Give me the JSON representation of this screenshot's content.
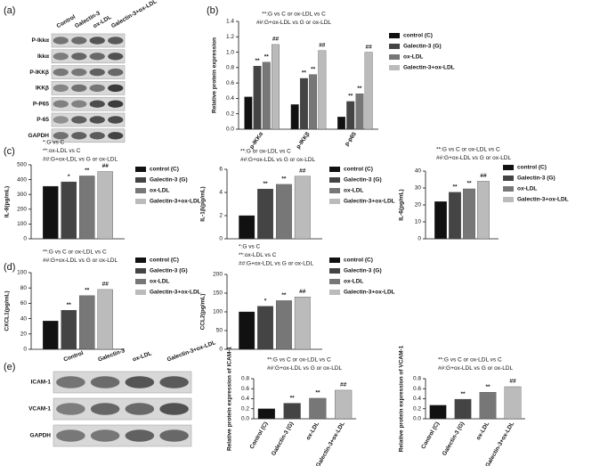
{
  "panels": {
    "a": "(a)",
    "b": "(b)",
    "c": "(c)",
    "d": "(d)",
    "e": "(e)"
  },
  "blot_a": {
    "lanes": [
      "Control",
      "Galectin-3",
      "ox-LDL",
      "Galectin-3+ox-LDL"
    ],
    "rows": [
      "P-Ikkα",
      "Ikkα",
      "P-IKKβ",
      "IKKβ",
      "P-P65",
      "P-65",
      "GAPDH"
    ]
  },
  "blot_e": {
    "lanes": [
      "Control",
      "Galectin-3",
      "ox-LDL",
      "Galectin-3+ox-LDL"
    ],
    "rows": [
      "ICAM-1",
      "VCAM-1",
      "GAPDH"
    ]
  },
  "chart_data": [
    {
      "type": "bar",
      "notes": [
        "**:G vs C or ox-LDL vs C",
        "##:G+ox-LDL vs G or ox-LDL"
      ],
      "y_label": "Relative protein expression",
      "categories": [
        "p-IKKα",
        "p-IKKβ",
        "p-p65"
      ],
      "ylim": [
        0,
        1.4
      ],
      "yticks": [
        {
          "value": 0,
          "label": "0.0"
        },
        {
          "value": 0.2,
          "label": "0.2"
        },
        {
          "value": 0.4,
          "label": "0.4"
        },
        {
          "value": 0.6,
          "label": "0.6"
        },
        {
          "value": 0.8,
          "label": "0.8"
        },
        {
          "value": 1,
          "label": "1.0"
        },
        {
          "value": 1.2,
          "label": "1.2"
        },
        {
          "value": 1.4,
          "label": "1.4"
        }
      ],
      "series": [
        {
          "name": "control  (C)",
          "color": "#111111",
          "values": [
            0.42,
            0.32,
            0.16
          ]
        },
        {
          "name": "Galectin-3  (G)",
          "color": "#444444",
          "values": [
            0.82,
            0.66,
            0.36
          ],
          "significance": [
            "**",
            "**",
            "**"
          ]
        },
        {
          "name": "ox-LDL",
          "color": "#777777",
          "values": [
            0.87,
            0.71,
            0.46
          ],
          "significance": [
            "**",
            "**",
            "**"
          ]
        },
        {
          "name": "Galectin-3+ox-LDL",
          "color": "#bbbbbb",
          "values": [
            1.1,
            1.02,
            1.0
          ],
          "significance": [
            "##",
            "##",
            "##"
          ]
        }
      ]
    },
    {
      "type": "bar",
      "notes": [
        "*:G vs C",
        "**:ox-LDL vs C",
        "##:G+ox-LDL vs G or ox-LDL"
      ],
      "y_label": "IL-8(pg/mL)",
      "categories": [
        null
      ],
      "ylim": [
        0,
        500
      ],
      "yticks": [
        0,
        100,
        200,
        300,
        400,
        500
      ],
      "series": [
        {
          "name": "control  (C)",
          "color": "#111111",
          "values": [
            355
          ]
        },
        {
          "name": "Galectin-3  (G)",
          "color": "#444444",
          "values": [
            385
          ],
          "significance": [
            "*"
          ]
        },
        {
          "name": "ox-LDL",
          "color": "#777777",
          "values": [
            425
          ],
          "significance": [
            "**"
          ]
        },
        {
          "name": "Galectin-3+ox-LDL",
          "color": "#bbbbbb",
          "values": [
            455
          ],
          "significance": [
            "##"
          ]
        }
      ]
    },
    {
      "type": "bar",
      "notes": [
        "**:G or ox-LDL vs C",
        "##:G+ox-LDL vs G or ox-LDL"
      ],
      "y_label": "IL-1β(pg/mL)",
      "categories": [
        null
      ],
      "ylim": [
        0,
        6
      ],
      "yticks": [
        0,
        2,
        4,
        6
      ],
      "series": [
        {
          "name": "control  (C)",
          "color": "#111111",
          "values": [
            2.0
          ]
        },
        {
          "name": "Galectin-3  (G)",
          "color": "#444444",
          "values": [
            4.3
          ],
          "significance": [
            "**"
          ]
        },
        {
          "name": "ox-LDL",
          "color": "#777777",
          "values": [
            4.7
          ],
          "significance": [
            "**"
          ]
        },
        {
          "name": "Galectin-3+ox-LDL",
          "color": "#bbbbbb",
          "values": [
            5.4
          ],
          "significance": [
            "##"
          ]
        }
      ]
    },
    {
      "type": "bar",
      "notes": [
        "**:G vs C or ox-LDL vs C",
        "##:G+ox-LDL vs G or ox-LDL"
      ],
      "y_label": "IL-6(pg/mL)",
      "categories": [
        null
      ],
      "ylim": [
        0,
        40
      ],
      "yticks": [
        0,
        10,
        20,
        30,
        40
      ],
      "series": [
        {
          "name": "control  (C)",
          "color": "#111111",
          "values": [
            22
          ]
        },
        {
          "name": "Galectin-3  (G)",
          "color": "#444444",
          "values": [
            27.5
          ],
          "significance": [
            "**"
          ]
        },
        {
          "name": "ox-LDL",
          "color": "#777777",
          "values": [
            29.5
          ],
          "significance": [
            "**"
          ]
        },
        {
          "name": "Galectin-3+ox-LDL",
          "color": "#bbbbbb",
          "values": [
            34
          ],
          "significance": [
            "##"
          ]
        }
      ]
    },
    {
      "type": "bar",
      "notes": [
        "**:G vs C or ox-LDL vs C",
        "##:G+ox-LDL vs G or ox-LDL"
      ],
      "y_label": "CXCL1(pg/mL)",
      "categories": [
        null
      ],
      "ylim": [
        0,
        100
      ],
      "yticks": [
        0,
        20,
        40,
        60,
        80,
        100
      ],
      "series": [
        {
          "name": "control  (C)",
          "color": "#111111",
          "values": [
            37
          ]
        },
        {
          "name": "Galectin-3  (G)",
          "color": "#444444",
          "values": [
            51
          ],
          "significance": [
            "**"
          ]
        },
        {
          "name": "ox-LDL",
          "color": "#777777",
          "values": [
            70
          ],
          "significance": [
            "**"
          ]
        },
        {
          "name": "Galectin-3+ox-LDL",
          "color": "#bbbbbb",
          "values": [
            78
          ],
          "significance": [
            "##"
          ]
        }
      ]
    },
    {
      "type": "bar",
      "notes": [
        "*:G vs C",
        "**:ox-LDL vs C",
        "##:G+ox-LDL vs G or ox-LDL"
      ],
      "y_label": "CCL2(pg/mL)",
      "categories": [
        null
      ],
      "ylim": [
        0,
        200
      ],
      "yticks": [
        0,
        50,
        100,
        150,
        200
      ],
      "series": [
        {
          "name": "control  (C)",
          "color": "#111111",
          "values": [
            100
          ]
        },
        {
          "name": "Galectin-3  (G)",
          "color": "#444444",
          "values": [
            115
          ],
          "significance": [
            "*"
          ]
        },
        {
          "name": "ox-LDL",
          "color": "#777777",
          "values": [
            130
          ],
          "significance": [
            "**"
          ]
        },
        {
          "name": "Galectin-3+ox-LDL",
          "color": "#bbbbbb",
          "values": [
            140
          ],
          "significance": [
            "##"
          ]
        }
      ]
    },
    {
      "type": "bar",
      "notes": [
        "**:G vs C or ox-LDL vs C",
        "##:G+ox-LDL vs G or ox-LDL"
      ],
      "y_label": "Relative protein expression of ICAM-1",
      "categories": [
        "Control (C)",
        "Galectin-3 (G)",
        "ox-LDL",
        "Galectin-3+ox-LDL"
      ],
      "values": [
        0.2,
        0.31,
        0.41,
        0.57
      ],
      "colors": [
        "#111111",
        "#444444",
        "#777777",
        "#bbbbbb"
      ],
      "significance": [
        null,
        "**",
        "**",
        "##"
      ],
      "ylim": [
        0,
        0.8
      ],
      "yticks": [
        {
          "value": 0,
          "label": "0.0"
        },
        {
          "value": 0.2,
          "label": "0.2"
        },
        {
          "value": 0.4,
          "label": "0.4"
        },
        {
          "value": 0.6,
          "label": "0.6"
        },
        {
          "value": 0.8,
          "label": "0.8"
        }
      ]
    },
    {
      "type": "bar",
      "notes": [
        "**:G vs C or ox-LDL vs C",
        "##:G+ox-LDL vs G or ox-LDL"
      ],
      "y_label": "Relative protein expression of VCAM-1",
      "categories": [
        "Control (C)",
        "Galectin-3 (G)",
        "ox-LDL",
        "Galectin-3+ox-LDL"
      ],
      "values": [
        0.27,
        0.39,
        0.53,
        0.64
      ],
      "colors": [
        "#111111",
        "#444444",
        "#777777",
        "#bbbbbb"
      ],
      "significance": [
        null,
        "**",
        "**",
        "##"
      ],
      "ylim": [
        0,
        0.8
      ],
      "yticks": [
        {
          "value": 0,
          "label": "0.0"
        },
        {
          "value": 0.2,
          "label": "0.2"
        },
        {
          "value": 0.4,
          "label": "0.4"
        },
        {
          "value": 0.6,
          "label": "0.6"
        },
        {
          "value": 0.8,
          "label": "0.8"
        }
      ]
    }
  ]
}
